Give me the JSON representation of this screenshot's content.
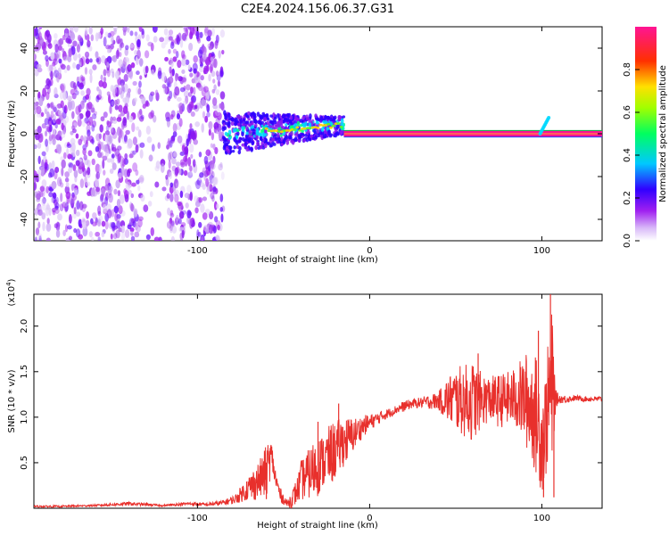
{
  "title": "C2E4.2024.156.06.37.G31",
  "chart_data": [
    {
      "type": "heatmap",
      "xlabel": "Height of straight line (km)",
      "ylabel": "Frequency (Hz)",
      "xlim": [
        -195,
        135
      ],
      "ylim": [
        -50,
        50
      ],
      "xticks": [
        -100,
        0,
        100
      ],
      "yticks": [
        -40,
        -20,
        0,
        20,
        40
      ],
      "colorbar": {
        "label": "Normalized spectral amplitude",
        "range": [
          0,
          1
        ],
        "ticks": [
          0.0,
          0.2,
          0.4,
          0.6,
          0.8
        ],
        "colors": [
          "#ffffff",
          "#a020f0",
          "#0000ff",
          "#00ffff",
          "#00ff00",
          "#ffff00",
          "#ff0000",
          "#ff1493"
        ]
      },
      "features": {
        "noise_region_x": [
          -195,
          -85
        ],
        "turbulent_region_x": [
          -85,
          -15
        ],
        "carrier_line_frequency": 0,
        "carrier_line_x": [
          -15,
          135
        ],
        "carrier_line_bounds": [
          -1.5,
          1.5
        ],
        "tail_curve_x": [
          99,
          104
        ]
      }
    },
    {
      "type": "line",
      "xlabel": "Height of straight line (km)",
      "ylabel": "SNR (10 * v/v)",
      "y_multiplier": "(x10",
      "y_multiplier_exp": "4",
      "y_multiplier_close": ")",
      "xlim": [
        -195,
        135
      ],
      "ylim": [
        0,
        2.35
      ],
      "xticks": [
        -100,
        0,
        100
      ],
      "yticks": [
        0.5,
        1.0,
        1.5,
        2.0
      ],
      "ytick_labels": [
        "0.5",
        "1.0",
        "1.5",
        "2.0"
      ],
      "series": [
        {
          "color": "#e8302c",
          "x": [
            -195,
            -180,
            -160,
            -140,
            -120,
            -105,
            -95,
            -85,
            -78,
            -72,
            -68,
            -65,
            -62,
            -59,
            -57,
            -55,
            -52,
            -48,
            -45,
            -42,
            -40,
            -37,
            -34,
            -31,
            -28,
            -25,
            -22,
            -19,
            -16,
            -13,
            -10,
            -7,
            -4,
            -1,
            2,
            5,
            8,
            12,
            16,
            20,
            25,
            30,
            35,
            40,
            45,
            50,
            55,
            60,
            65,
            70,
            75,
            80,
            85,
            90,
            93,
            96,
            98,
            100,
            102,
            104,
            106,
            108,
            110,
            115,
            120,
            125,
            130,
            135
          ],
          "y": [
            0.02,
            0.02,
            0.03,
            0.05,
            0.03,
            0.05,
            0.04,
            0.06,
            0.1,
            0.2,
            0.25,
            0.3,
            0.35,
            0.45,
            0.6,
            0.35,
            0.15,
            0.05,
            0.1,
            0.2,
            0.3,
            0.35,
            0.4,
            0.45,
            0.5,
            0.55,
            0.6,
            0.65,
            0.72,
            0.75,
            0.8,
            0.85,
            0.9,
            0.93,
            0.96,
            0.99,
            1.02,
            1.05,
            1.09,
            1.12,
            1.15,
            1.16,
            1.17,
            1.18,
            1.19,
            1.2,
            1.18,
            1.17,
            1.19,
            1.2,
            1.18,
            1.2,
            1.21,
            1.2,
            1.15,
            1.05,
            0.95,
            0.75,
            0.9,
            1.2,
            1.3,
            1.2,
            1.2,
            1.2,
            1.21,
            1.2,
            1.2,
            1.2
          ],
          "spread": [
            0.01,
            0.01,
            0.01,
            0.02,
            0.01,
            0.02,
            0.02,
            0.03,
            0.05,
            0.12,
            0.18,
            0.2,
            0.25,
            0.3,
            0.15,
            0.12,
            0.08,
            0.04,
            0.1,
            0.15,
            0.22,
            0.25,
            0.3,
            0.35,
            0.3,
            0.32,
            0.34,
            0.32,
            0.28,
            0.25,
            0.2,
            0.15,
            0.12,
            0.1,
            0.08,
            0.07,
            0.06,
            0.05,
            0.05,
            0.06,
            0.05,
            0.06,
            0.08,
            0.1,
            0.25,
            0.35,
            0.4,
            0.45,
            0.3,
            0.25,
            0.3,
            0.3,
            0.35,
            0.5,
            0.6,
            0.65,
            0.65,
            0.6,
            0.6,
            0.7,
            0.9,
            0.1,
            0.05,
            0.04,
            0.03,
            0.03,
            0.03,
            0.03
          ]
        }
      ]
    }
  ]
}
